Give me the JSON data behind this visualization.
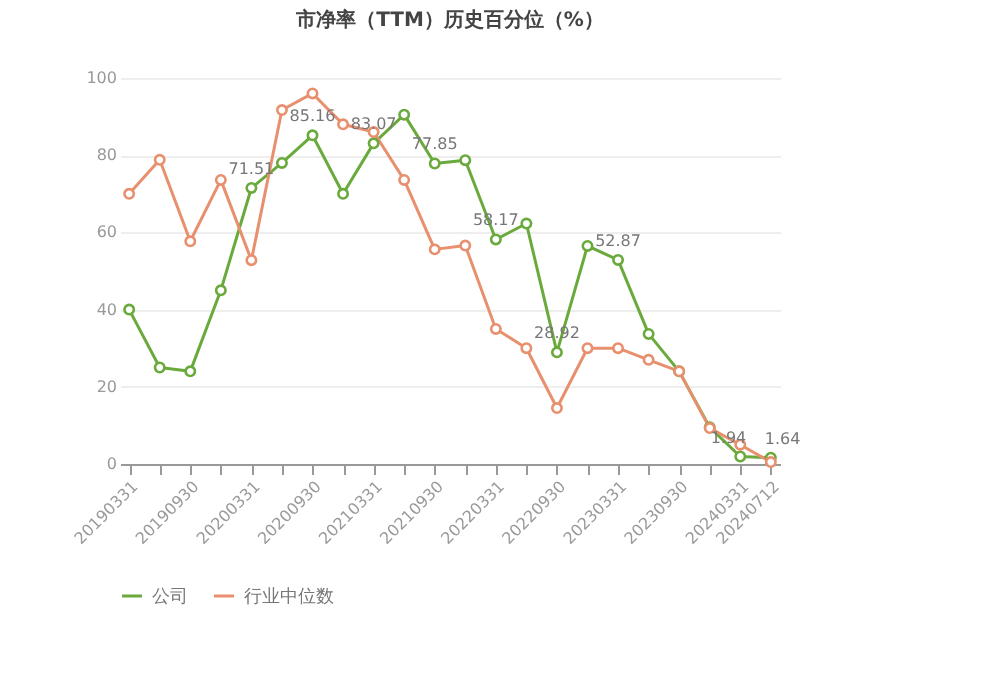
{
  "chart_data": {
    "type": "line",
    "title": "市净率（TTM）历史百分位（%）",
    "categories": [
      "20190331",
      null,
      "20190930",
      null,
      "20200331",
      null,
      "20200930",
      null,
      "20210331",
      null,
      "20210930",
      null,
      "20220331",
      null,
      "20220930",
      null,
      "20230331",
      null,
      "20230930",
      null,
      "20240331",
      "20240712"
    ],
    "series": [
      {
        "name": "公司",
        "color": "#6aaa3c",
        "values": [
          40,
          25,
          24,
          45,
          71.51,
          78,
          85.16,
          70,
          83.07,
          90.5,
          77.85,
          78.7,
          58.17,
          62.3,
          28.92,
          56.5,
          52.87,
          33.7,
          24,
          9.5,
          1.94,
          1.64
        ],
        "value_labels": [
          null,
          null,
          null,
          null,
          "71.51",
          null,
          "85.16",
          null,
          "83.07",
          null,
          "77.85",
          null,
          "58.17",
          null,
          "28.92",
          null,
          "52.87",
          null,
          null,
          null,
          "1.94",
          "1.64"
        ]
      },
      {
        "name": "行业中位数",
        "color": "#e8906e",
        "values": [
          70,
          78.8,
          57.7,
          73.6,
          52.8,
          91.7,
          96,
          88,
          86,
          73.6,
          55.6,
          56.6,
          35,
          30,
          14.5,
          30,
          30,
          27,
          24,
          9.3,
          5,
          0.5
        ]
      }
    ],
    "ylim": [
      0,
      100
    ],
    "yticks": [
      0,
      20,
      40,
      60,
      80,
      100
    ],
    "grid": "y",
    "legend": "bottom",
    "marker": "circle",
    "line_style": "solid"
  }
}
